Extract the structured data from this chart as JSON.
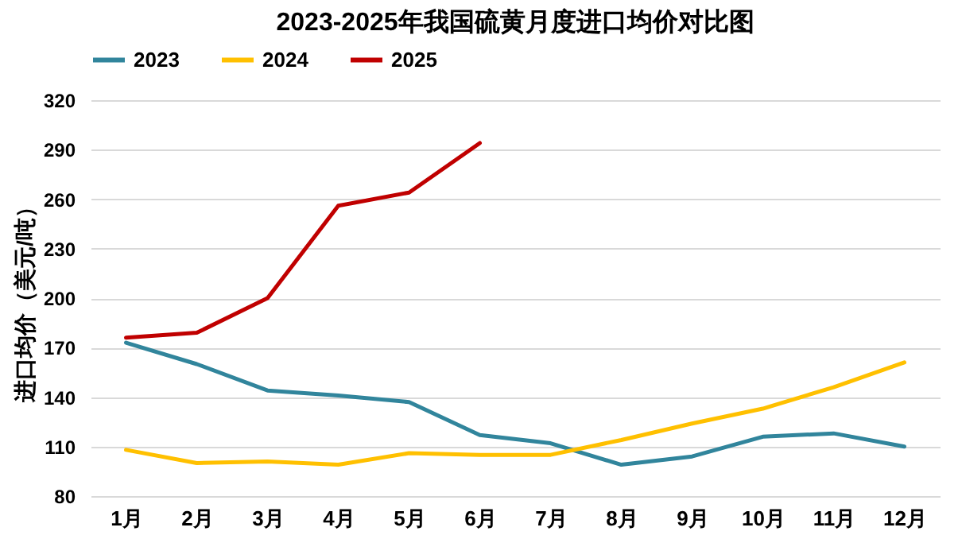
{
  "chart_data": {
    "type": "line",
    "title": "2023-2025年我国硫黄月度进口均价对比图",
    "ylabel": "进口均价（美元/吨）",
    "categories": [
      "1月",
      "2月",
      "3月",
      "4月",
      "5月",
      "6月",
      "7月",
      "8月",
      "9月",
      "10月",
      "11月",
      "12月"
    ],
    "series": [
      {
        "name": "2023",
        "color": "#31859c",
        "values": [
          173,
          160,
          144,
          141,
          137,
          117,
          112,
          99,
          104,
          116,
          118,
          110
        ]
      },
      {
        "name": "2024",
        "color": "#ffc000",
        "values": [
          108,
          100,
          101,
          99,
          106,
          105,
          105,
          114,
          124,
          133,
          146,
          161
        ]
      },
      {
        "name": "2025",
        "color": "#c00000",
        "values": [
          176,
          179,
          200,
          256,
          264,
          294,
          null,
          null,
          null,
          null,
          null,
          null
        ]
      }
    ],
    "ylim": [
      80,
      320
    ],
    "yticks": [
      80,
      110,
      140,
      170,
      200,
      230,
      260,
      290,
      320
    ],
    "grid": "y",
    "legend": "top",
    "marker": "none",
    "line_style": "solid"
  }
}
